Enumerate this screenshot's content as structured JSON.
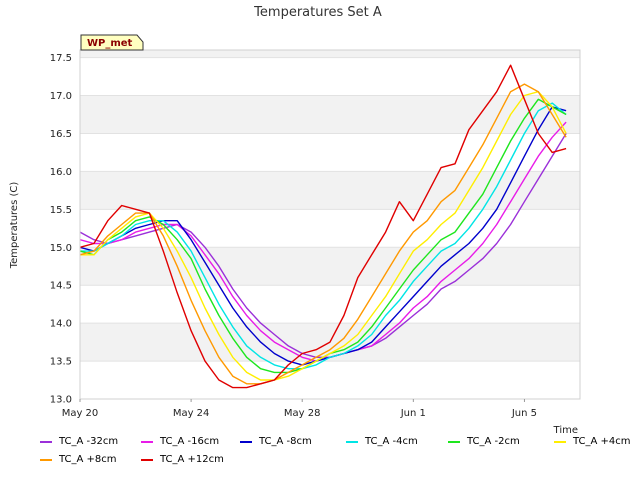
{
  "chart_data": {
    "type": "line",
    "title": "Temperatures Set A",
    "xlabel": "Time",
    "ylabel": "Temperatures (C)",
    "badge": "WP_met",
    "x_ticks": [
      "May 20",
      "May 24",
      "May 28",
      "Jun 1",
      "Jun 5"
    ],
    "y_ticks": [
      "13.0",
      "13.5",
      "14.0",
      "14.5",
      "15.0",
      "15.5",
      "16.0",
      "16.5",
      "17.0",
      "17.5"
    ],
    "xlim": [
      0,
      18
    ],
    "ylim": [
      13.0,
      17.6
    ],
    "grid": "horizontal bands",
    "legend_position": "bottom",
    "series": [
      {
        "name": "TC_A -32cm",
        "color": "#9b30d9",
        "x": [
          0,
          0.5,
          1,
          1.5,
          2,
          2.5,
          3,
          3.5,
          4,
          4.5,
          5,
          5.5,
          6,
          6.5,
          7,
          7.5,
          8,
          8.5,
          9,
          9.5,
          10,
          10.5,
          11,
          11.5,
          12,
          12.5,
          13,
          13.5,
          14,
          14.5,
          15,
          15.5,
          16,
          16.5,
          17,
          17.5
        ],
        "y": [
          15.2,
          15.1,
          15.05,
          15.1,
          15.15,
          15.2,
          15.25,
          15.3,
          15.2,
          15.0,
          14.75,
          14.45,
          14.2,
          14.0,
          13.85,
          13.7,
          13.6,
          13.55,
          13.55,
          13.6,
          13.65,
          13.7,
          13.8,
          13.95,
          14.1,
          14.25,
          14.45,
          14.55,
          14.7,
          14.85,
          15.05,
          15.3,
          15.6,
          15.9,
          16.2,
          16.5
        ]
      },
      {
        "name": "TC_A -16cm",
        "color": "#e81ce8",
        "x": [
          0,
          0.5,
          1,
          1.5,
          2,
          2.5,
          3,
          3.5,
          4,
          4.5,
          5,
          5.5,
          6,
          6.5,
          7,
          7.5,
          8,
          8.5,
          9,
          9.5,
          10,
          10.5,
          11,
          11.5,
          12,
          12.5,
          13,
          13.5,
          14,
          14.5,
          15,
          15.5,
          16,
          16.5,
          17,
          17.5
        ],
        "y": [
          15.1,
          15.05,
          15.05,
          15.1,
          15.2,
          15.25,
          15.3,
          15.3,
          15.15,
          14.9,
          14.65,
          14.35,
          14.1,
          13.9,
          13.75,
          13.65,
          13.55,
          13.5,
          13.55,
          13.6,
          13.65,
          13.7,
          13.85,
          14.0,
          14.2,
          14.35,
          14.55,
          14.7,
          14.85,
          15.05,
          15.3,
          15.6,
          15.9,
          16.2,
          16.45,
          16.65
        ]
      },
      {
        "name": "TC_A -8cm",
        "color": "#0000cc",
        "x": [
          0,
          0.5,
          1,
          1.5,
          2,
          2.5,
          3,
          3.5,
          4,
          4.5,
          5,
          5.5,
          6,
          6.5,
          7,
          7.5,
          8,
          8.5,
          9,
          9.5,
          10,
          10.5,
          11,
          11.5,
          12,
          12.5,
          13,
          13.5,
          14,
          14.5,
          15,
          15.5,
          16,
          16.5,
          17,
          17.5
        ],
        "y": [
          15.0,
          14.95,
          15.05,
          15.15,
          15.25,
          15.3,
          15.35,
          15.35,
          15.1,
          14.8,
          14.5,
          14.2,
          13.95,
          13.75,
          13.6,
          13.5,
          13.45,
          13.5,
          13.55,
          13.6,
          13.65,
          13.75,
          13.95,
          14.15,
          14.35,
          14.55,
          14.75,
          14.9,
          15.05,
          15.25,
          15.5,
          15.85,
          16.2,
          16.55,
          16.85,
          16.8
        ]
      },
      {
        "name": "TC_A -4cm",
        "color": "#00e5e5",
        "x": [
          0,
          0.5,
          1,
          1.5,
          2,
          2.5,
          3,
          3.5,
          4,
          4.5,
          5,
          5.5,
          6,
          6.5,
          7,
          7.5,
          8,
          8.5,
          9,
          9.5,
          10,
          10.5,
          11,
          11.5,
          12,
          12.5,
          13,
          13.5,
          14,
          14.5,
          15,
          15.5,
          16,
          16.5,
          17,
          17.5
        ],
        "y": [
          14.95,
          14.95,
          15.05,
          15.15,
          15.3,
          15.35,
          15.35,
          15.2,
          14.95,
          14.6,
          14.25,
          13.95,
          13.7,
          13.55,
          13.45,
          13.4,
          13.4,
          13.45,
          13.55,
          13.6,
          13.7,
          13.85,
          14.1,
          14.3,
          14.55,
          14.75,
          14.95,
          15.05,
          15.25,
          15.5,
          15.8,
          16.15,
          16.5,
          16.8,
          16.9,
          16.75
        ]
      },
      {
        "name": "TC_A -2cm",
        "color": "#1ee61e",
        "x": [
          0,
          0.5,
          1,
          1.5,
          2,
          2.5,
          3,
          3.5,
          4,
          4.5,
          5,
          5.5,
          6,
          6.5,
          7,
          7.5,
          8,
          8.5,
          9,
          9.5,
          10,
          10.5,
          11,
          11.5,
          12,
          12.5,
          13,
          13.5,
          14,
          14.5,
          15,
          15.5,
          16,
          16.5,
          17,
          17.5
        ],
        "y": [
          14.95,
          14.9,
          15.1,
          15.2,
          15.35,
          15.4,
          15.3,
          15.1,
          14.85,
          14.45,
          14.1,
          13.8,
          13.55,
          13.4,
          13.35,
          13.35,
          13.4,
          13.5,
          13.6,
          13.65,
          13.75,
          13.95,
          14.2,
          14.45,
          14.7,
          14.9,
          15.1,
          15.2,
          15.45,
          15.7,
          16.05,
          16.4,
          16.7,
          16.95,
          16.85,
          16.75
        ]
      },
      {
        "name": "TC_A +4cm",
        "color": "#ffee00",
        "x": [
          0,
          0.5,
          1,
          1.5,
          2,
          2.5,
          3,
          3.5,
          4,
          4.5,
          5,
          5.5,
          6,
          6.5,
          7,
          7.5,
          8,
          8.5,
          9,
          9.5,
          10,
          10.5,
          11,
          11.5,
          12,
          12.5,
          13,
          13.5,
          14,
          14.5,
          15,
          15.5,
          16,
          16.5,
          17,
          17.5
        ],
        "y": [
          14.9,
          14.9,
          15.1,
          15.25,
          15.4,
          15.45,
          15.25,
          14.95,
          14.6,
          14.2,
          13.85,
          13.55,
          13.35,
          13.25,
          13.25,
          13.3,
          13.4,
          13.5,
          13.6,
          13.7,
          13.85,
          14.1,
          14.35,
          14.65,
          14.95,
          15.1,
          15.3,
          15.45,
          15.75,
          16.05,
          16.4,
          16.75,
          17.0,
          17.05,
          16.85,
          16.5
        ]
      },
      {
        "name": "TC_A +8cm",
        "color": "#ff9900",
        "x": [
          0,
          0.5,
          1,
          1.5,
          2,
          2.5,
          3,
          3.5,
          4,
          4.5,
          5,
          5.5,
          6,
          6.5,
          7,
          7.5,
          8,
          8.5,
          9,
          9.5,
          10,
          10.5,
          11,
          11.5,
          12,
          12.5,
          13,
          13.5,
          14,
          14.5,
          15,
          15.5,
          16,
          16.5,
          17,
          17.5
        ],
        "y": [
          14.9,
          14.95,
          15.15,
          15.3,
          15.45,
          15.45,
          15.15,
          14.75,
          14.3,
          13.9,
          13.55,
          13.3,
          13.2,
          13.2,
          13.25,
          13.35,
          13.45,
          13.55,
          13.65,
          13.8,
          14.05,
          14.35,
          14.65,
          14.95,
          15.2,
          15.35,
          15.6,
          15.75,
          16.05,
          16.35,
          16.7,
          17.05,
          17.15,
          17.05,
          16.75,
          16.45
        ]
      },
      {
        "name": "TC_A +12cm",
        "color": "#e00000",
        "x": [
          0,
          0.5,
          1,
          1.5,
          2,
          2.5,
          3,
          3.5,
          4,
          4.5,
          5,
          5.5,
          6,
          6.5,
          7,
          7.5,
          8,
          8.5,
          9,
          9.5,
          10,
          10.5,
          11,
          11.5,
          12,
          12.5,
          13,
          13.5,
          14,
          14.5,
          15,
          15.5,
          16,
          16.5,
          17,
          17.5
        ],
        "y": [
          15.0,
          15.05,
          15.35,
          15.55,
          15.5,
          15.45,
          14.95,
          14.4,
          13.9,
          13.5,
          13.25,
          13.15,
          13.15,
          13.2,
          13.25,
          13.45,
          13.6,
          13.65,
          13.75,
          14.1,
          14.6,
          14.9,
          15.2,
          15.6,
          15.35,
          15.7,
          16.05,
          16.1,
          16.55,
          16.8,
          17.05,
          17.4,
          16.95,
          16.5,
          16.25,
          16.3
        ]
      }
    ]
  }
}
